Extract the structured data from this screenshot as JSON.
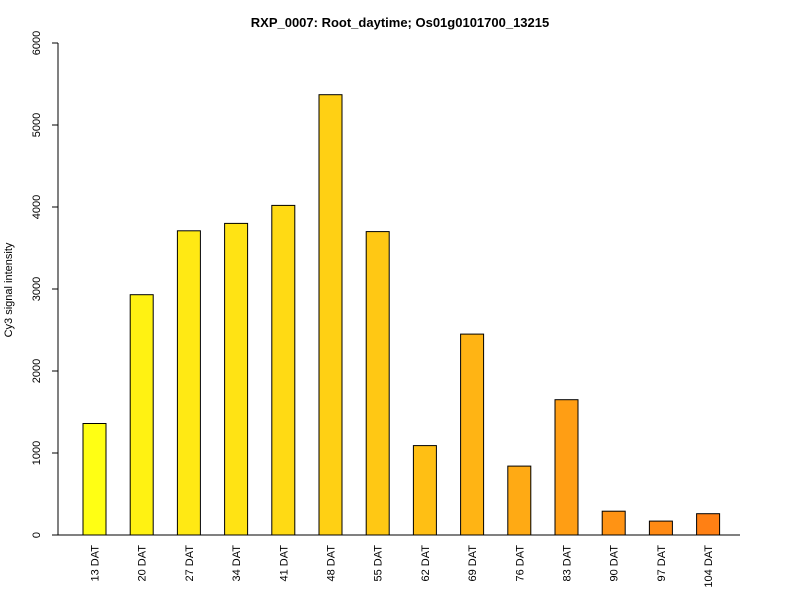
{
  "chart_data": {
    "type": "bar",
    "title": "RXP_0007: Root_daytime; Os01g0101700_13215",
    "xlabel": "",
    "ylabel": "Cy3 signal intensity",
    "ylim": [
      0,
      6000
    ],
    "yticks": [
      0,
      1000,
      2000,
      3000,
      4000,
      5000,
      6000
    ],
    "categories": [
      "13 DAT",
      "20 DAT",
      "27 DAT",
      "34 DAT",
      "41 DAT",
      "48 DAT",
      "55 DAT",
      "62 DAT",
      "69 DAT",
      "76 DAT",
      "83 DAT",
      "90 DAT",
      "97 DAT",
      "104 DAT"
    ],
    "values": [
      1360,
      2930,
      3710,
      3800,
      4020,
      5370,
      3700,
      1090,
      2450,
      840,
      1650,
      290,
      170,
      260
    ],
    "colors": [
      "#FFFF14",
      "#FFF212",
      "#FFE914",
      "#FFE314",
      "#FFDA14",
      "#FFD014",
      "#FFC814",
      "#FFBF14",
      "#FFB414",
      "#FFAA14",
      "#FF9E14",
      "#FF9314",
      "#FF8A14",
      "#FF8014"
    ],
    "grid": false,
    "legend": "none"
  }
}
